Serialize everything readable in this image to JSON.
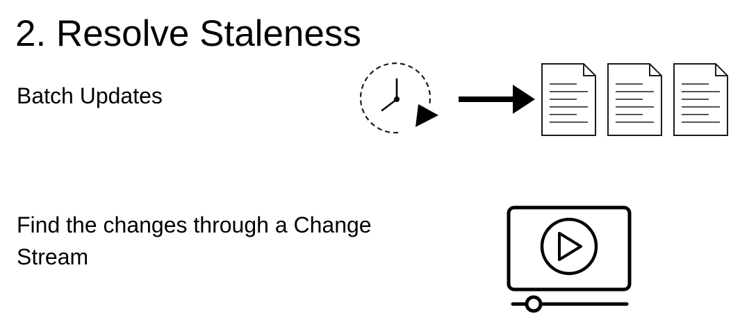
{
  "slide": {
    "title": "2. Resolve Staleness",
    "points": [
      {
        "text": "Batch Updates",
        "icons": [
          "clock-icon",
          "arrow-right-icon",
          "document-icon",
          "document-icon",
          "document-icon"
        ]
      },
      {
        "text": "Find the changes through a Change Stream",
        "icons": [
          "video-player-icon"
        ]
      }
    ]
  },
  "colors": {
    "text": "#000000",
    "icon_stroke": "#1a1a1a",
    "background": "#ffffff"
  }
}
